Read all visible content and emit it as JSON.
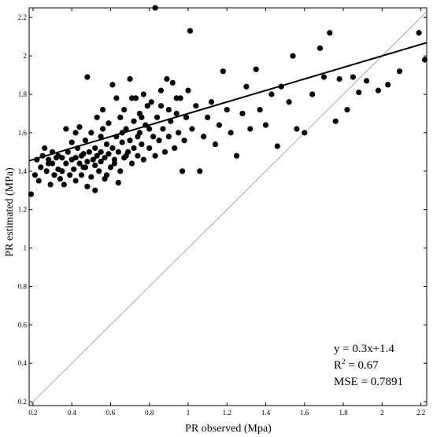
{
  "chart_data": {
    "type": "scatter",
    "xlabel": "PR observed (Mpa)",
    "ylabel": "PR estimated (MPa)",
    "xlim": [
      0.18,
      2.23
    ],
    "ylim": [
      0.18,
      2.25
    ],
    "xticks": [
      {
        "value": 0.2,
        "label": "0.2"
      },
      {
        "value": 0.4,
        "label": "0.4"
      },
      {
        "value": 0.6,
        "label": "0.6"
      },
      {
        "value": 0.8,
        "label": "0.8"
      },
      {
        "value": 1.0,
        "label": "1"
      },
      {
        "value": 1.2,
        "label": "1.2"
      },
      {
        "value": 1.4,
        "label": "1.4"
      },
      {
        "value": 1.6,
        "label": "1.6"
      },
      {
        "value": 1.8,
        "label": "1.8"
      },
      {
        "value": 2.0,
        "label": "2"
      },
      {
        "value": 2.2,
        "label": "2.2"
      }
    ],
    "yticks": [
      {
        "value": 0.2,
        "label": "0.2"
      },
      {
        "value": 0.4,
        "label": "0.4"
      },
      {
        "value": 0.6,
        "label": "0.6"
      },
      {
        "value": 0.8,
        "label": "0.8"
      },
      {
        "value": 1.0,
        "label": "1"
      },
      {
        "value": 1.2,
        "label": "1.2"
      },
      {
        "value": 1.4,
        "label": "1.4"
      },
      {
        "value": 1.6,
        "label": "1.6"
      },
      {
        "value": 1.8,
        "label": "1.8"
      },
      {
        "value": 2.0,
        "label": "2"
      },
      {
        "value": 2.2,
        "label": "2.2"
      }
    ],
    "grid": false,
    "fit_line": {
      "slope": 0.3,
      "intercept": 1.4,
      "x_range": [
        0.18,
        2.23
      ]
    },
    "identity_line": {
      "x_range": [
        0.18,
        2.23
      ]
    },
    "annotations": {
      "equation": "y = 0.3x+1.4",
      "r2_prefix": "R",
      "r2_exp": "2",
      "r2_value": " = 0.67",
      "mse": "MSE = 0.7891"
    },
    "colors": {
      "points": "#000000",
      "fit_line": "#000000",
      "identity_line": "#a8a8a8",
      "axes": "#000000"
    },
    "points": [
      [
        0.19,
        1.28
      ],
      [
        0.21,
        1.38
      ],
      [
        0.22,
        1.46
      ],
      [
        0.23,
        1.35
      ],
      [
        0.24,
        1.42
      ],
      [
        0.25,
        1.48
      ],
      [
        0.26,
        1.52
      ],
      [
        0.27,
        1.4
      ],
      [
        0.28,
        1.46
      ],
      [
        0.29,
        1.33
      ],
      [
        0.3,
        1.44
      ],
      [
        0.3,
        1.5
      ],
      [
        0.31,
        1.38
      ],
      [
        0.32,
        1.47
      ],
      [
        0.33,
        1.41
      ],
      [
        0.34,
        1.36
      ],
      [
        0.35,
        1.47
      ],
      [
        0.36,
        1.33
      ],
      [
        0.37,
        1.62
      ],
      [
        0.37,
        1.44
      ],
      [
        0.38,
        1.5
      ],
      [
        0.39,
        1.38
      ],
      [
        0.4,
        1.46
      ],
      [
        0.4,
        1.55
      ],
      [
        0.41,
        1.41
      ],
      [
        0.42,
        1.47
      ],
      [
        0.42,
        1.35
      ],
      [
        0.43,
        1.52
      ],
      [
        0.44,
        1.44
      ],
      [
        0.44,
        1.63
      ],
      [
        0.45,
        1.38
      ],
      [
        0.46,
        1.49
      ],
      [
        0.47,
        1.42
      ],
      [
        0.47,
        1.56
      ],
      [
        0.48,
        1.89
      ],
      [
        0.48,
        1.45
      ],
      [
        0.49,
        1.5
      ],
      [
        0.5,
        1.37
      ],
      [
        0.5,
        1.6
      ],
      [
        0.51,
        1.46
      ],
      [
        0.52,
        1.43
      ],
      [
        0.52,
        1.52
      ],
      [
        0.53,
        1.48
      ],
      [
        0.53,
        1.68
      ],
      [
        0.54,
        1.4
      ],
      [
        0.55,
        1.58
      ],
      [
        0.55,
        1.45
      ],
      [
        0.56,
        1.72
      ],
      [
        0.57,
        1.47
      ],
      [
        0.57,
        1.36
      ],
      [
        0.58,
        1.54
      ],
      [
        0.59,
        1.49
      ],
      [
        0.59,
        1.65
      ],
      [
        0.6,
        1.42
      ],
      [
        0.61,
        1.85
      ],
      [
        0.61,
        1.52
      ],
      [
        0.62,
        1.46
      ],
      [
        0.63,
        1.78
      ],
      [
        0.63,
        1.58
      ],
      [
        0.64,
        1.5
      ],
      [
        0.65,
        1.68
      ],
      [
        0.65,
        1.4
      ],
      [
        0.66,
        1.55
      ],
      [
        0.67,
        1.47
      ],
      [
        0.67,
        1.72
      ],
      [
        0.68,
        1.62
      ],
      [
        0.69,
        1.5
      ],
      [
        0.7,
        1.88
      ],
      [
        0.7,
        1.56
      ],
      [
        0.71,
        1.44
      ],
      [
        0.72,
        1.66
      ],
      [
        0.72,
        1.52
      ],
      [
        0.73,
        1.78
      ],
      [
        0.74,
        1.48
      ],
      [
        0.75,
        1.6
      ],
      [
        0.75,
        1.7
      ],
      [
        0.76,
        1.54
      ],
      [
        0.77,
        1.8
      ],
      [
        0.77,
        1.46
      ],
      [
        0.78,
        1.64
      ],
      [
        0.79,
        1.74
      ],
      [
        0.8,
        1.52
      ],
      [
        0.8,
        1.62
      ],
      [
        0.81,
        1.76
      ],
      [
        0.82,
        1.58
      ],
      [
        0.83,
        2.25
      ],
      [
        0.83,
        1.48
      ],
      [
        0.84,
        1.68
      ],
      [
        0.85,
        1.56
      ],
      [
        0.86,
        1.82
      ],
      [
        0.87,
        1.62
      ],
      [
        0.88,
        1.5
      ],
      [
        0.89,
        1.88
      ],
      [
        0.9,
        1.72
      ],
      [
        0.9,
        1.58
      ],
      [
        0.91,
        1.66
      ],
      [
        0.92,
        1.86
      ],
      [
        0.93,
        1.52
      ],
      [
        0.94,
        1.7
      ],
      [
        0.95,
        1.6
      ],
      [
        0.96,
        1.78
      ],
      [
        0.97,
        1.4
      ],
      [
        0.98,
        1.56
      ],
      [
        0.99,
        1.68
      ],
      [
        1.0,
        1.82
      ],
      [
        1.01,
        2.13
      ],
      [
        1.02,
        1.62
      ],
      [
        1.04,
        1.74
      ],
      [
        1.06,
        1.4
      ],
      [
        1.08,
        1.58
      ],
      [
        1.1,
        1.68
      ],
      [
        1.12,
        1.76
      ],
      [
        1.14,
        1.54
      ],
      [
        1.16,
        1.64
      ],
      [
        1.18,
        1.92
      ],
      [
        1.2,
        1.72
      ],
      [
        1.22,
        1.6
      ],
      [
        1.25,
        1.48
      ],
      [
        1.28,
        1.7
      ],
      [
        1.3,
        1.84
      ],
      [
        1.32,
        1.62
      ],
      [
        1.35,
        1.93
      ],
      [
        1.37,
        1.72
      ],
      [
        1.4,
        1.64
      ],
      [
        1.43,
        1.8
      ],
      [
        1.46,
        1.53
      ],
      [
        1.48,
        1.84
      ],
      [
        1.52,
        1.76
      ],
      [
        1.54,
        2.0
      ],
      [
        1.56,
        1.62
      ],
      [
        1.6,
        1.6
      ],
      [
        1.64,
        1.8
      ],
      [
        1.68,
        2.04
      ],
      [
        1.7,
        1.89
      ],
      [
        1.73,
        2.12
      ],
      [
        1.76,
        1.66
      ],
      [
        1.78,
        1.88
      ],
      [
        1.82,
        1.72
      ],
      [
        1.85,
        1.89
      ],
      [
        1.88,
        1.81
      ],
      [
        1.92,
        1.87
      ],
      [
        1.98,
        1.82
      ],
      [
        2.03,
        1.85
      ],
      [
        2.09,
        1.92
      ],
      [
        2.19,
        2.12
      ],
      [
        2.22,
        1.98
      ],
      [
        0.35,
        1.4
      ],
      [
        0.45,
        1.48
      ],
      [
        0.55,
        1.5
      ],
      [
        0.62,
        1.44
      ],
      [
        0.68,
        1.48
      ],
      [
        0.74,
        1.58
      ],
      [
        0.52,
        1.3
      ],
      [
        0.48,
        1.32
      ],
      [
        0.58,
        1.38
      ],
      [
        0.64,
        1.34
      ],
      [
        0.28,
        1.44
      ],
      [
        0.33,
        1.48
      ],
      [
        0.42,
        1.6
      ],
      [
        0.46,
        1.42
      ],
      [
        0.56,
        1.62
      ],
      [
        0.66,
        1.6
      ],
      [
        0.76,
        1.68
      ],
      [
        0.86,
        1.74
      ],
      [
        0.94,
        1.78
      ],
      [
        0.71,
        1.78
      ]
    ]
  }
}
